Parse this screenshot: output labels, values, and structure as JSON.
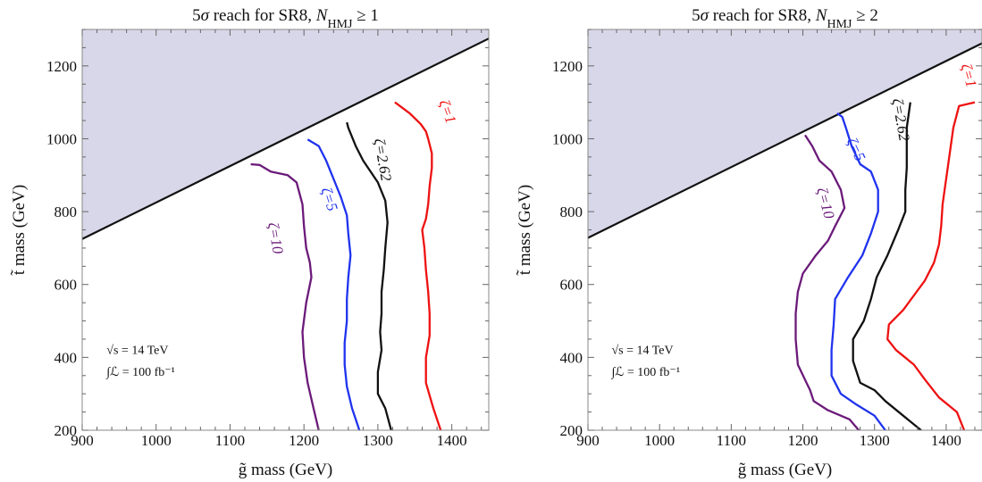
{
  "chart_data": [
    {
      "type": "line",
      "title": "5σ reach for SR8, N_HMJ ≥ 1",
      "title_parts": {
        "prefix": "5",
        "sigma": "σ",
        "mid": " reach for SR8, ",
        "N": "N",
        "sub": "HMJ",
        "rel": " ≥ 1"
      },
      "xlabel": "g̃ mass (GeV)",
      "ylabel": "t̃ mass (GeV)",
      "xlim": [
        900,
        1450
      ],
      "ylim": [
        200,
        1300
      ],
      "xticks": [
        "900",
        "1000",
        "1100",
        "1200",
        "1300",
        "1400"
      ],
      "yticks": [
        "200",
        "400",
        "600",
        "800",
        "1000",
        "1200"
      ],
      "grid": false,
      "excluded_region": {
        "color": "#d7d7e9",
        "boundary": [
          [
            900,
            725
          ],
          [
            1450,
            1275
          ]
        ]
      },
      "annotation": [
        "√s = 14 TeV",
        "∫ℒ = 100 fb⁻¹"
      ],
      "series": [
        {
          "name": "ζ=1",
          "color": "#ee1111",
          "label_at": [
            1388,
            1070
          ],
          "label_rot": 70,
          "x": [
            1385,
            1375,
            1365,
            1365,
            1370,
            1370,
            1368,
            1365,
            1363,
            1360,
            1365,
            1368,
            1370,
            1373,
            1373,
            1368,
            1365,
            1358,
            1343,
            1323
          ],
          "y": [
            200,
            260,
            330,
            400,
            460,
            520,
            580,
            640,
            700,
            750,
            780,
            820,
            870,
            920,
            960,
            1000,
            1020,
            1040,
            1070,
            1100
          ]
        },
        {
          "name": "ζ=2.62",
          "color": "#111111",
          "label_at": [
            1300,
            940
          ],
          "label_rot": 80,
          "x": [
            1318,
            1310,
            1300,
            1300,
            1305,
            1303,
            1305,
            1305,
            1308,
            1310,
            1313,
            1310,
            1300,
            1280,
            1270,
            1260,
            1258
          ],
          "y": [
            200,
            260,
            300,
            360,
            420,
            470,
            520,
            580,
            640,
            700,
            770,
            830,
            880,
            940,
            980,
            1030,
            1045
          ]
        },
        {
          "name": "ζ=5",
          "color": "#1f33ee",
          "label_at": [
            1228,
            830
          ],
          "label_rot": 72,
          "x": [
            1275,
            1265,
            1258,
            1255,
            1255,
            1258,
            1258,
            1260,
            1263,
            1260,
            1258,
            1250,
            1240,
            1230,
            1220,
            1205
          ],
          "y": [
            200,
            260,
            320,
            380,
            440,
            500,
            560,
            620,
            680,
            740,
            790,
            840,
            890,
            940,
            980,
            998
          ]
        },
        {
          "name": "ζ=10",
          "color": "#6b1a7a",
          "label_at": [
            1155,
            725
          ],
          "label_rot": 80,
          "x": [
            1220,
            1213,
            1205,
            1200,
            1198,
            1203,
            1210,
            1208,
            1203,
            1200,
            1198,
            1190,
            1178,
            1155,
            1140,
            1128
          ],
          "y": [
            200,
            260,
            330,
            400,
            470,
            550,
            620,
            660,
            700,
            760,
            820,
            880,
            900,
            910,
            928,
            930
          ]
        }
      ]
    },
    {
      "type": "line",
      "title": "5σ reach for SR8, N_HMJ ≥ 2",
      "title_parts": {
        "prefix": "5",
        "sigma": "σ",
        "mid": " reach for SR8, ",
        "N": "N",
        "sub": "HMJ",
        "rel": " ≥ 2"
      },
      "xlabel": "g̃ mass (GeV)",
      "ylabel": "t̃ mass (GeV)",
      "xlim": [
        900,
        1450
      ],
      "ylim": [
        200,
        1300
      ],
      "xticks": [
        "900",
        "1000",
        "1100",
        "1200",
        "1300",
        "1400"
      ],
      "yticks": [
        "200",
        "400",
        "600",
        "800",
        "1000",
        "1200"
      ],
      "grid": false,
      "excluded_region": {
        "color": "#d7d7e9",
        "boundary": [
          [
            900,
            728
          ],
          [
            1450,
            1262
          ]
        ]
      },
      "annotation": [
        "√s = 14 TeV",
        "∫ℒ = 100 fb⁻¹"
      ],
      "series": [
        {
          "name": "ζ=1",
          "color": "#ee1111",
          "label_at": [
            1425,
            1170
          ],
          "label_rot": 75,
          "x": [
            1425,
            1415,
            1390,
            1370,
            1355,
            1330,
            1318,
            1320,
            1340,
            1355,
            1370,
            1383,
            1390,
            1393,
            1395,
            1400,
            1405,
            1410,
            1418,
            1440
          ],
          "y": [
            200,
            250,
            290,
            340,
            380,
            420,
            450,
            490,
            530,
            570,
            610,
            660,
            710,
            760,
            820,
            890,
            960,
            1030,
            1090,
            1100
          ]
        },
        {
          "name": "ζ=2.62",
          "color": "#111111",
          "label_at": [
            1330,
            1050
          ],
          "label_rot": 80,
          "x": [
            1365,
            1340,
            1315,
            1300,
            1280,
            1270,
            1270,
            1285,
            1295,
            1303,
            1318,
            1333,
            1343,
            1343,
            1345,
            1345,
            1345,
            1350
          ],
          "y": [
            200,
            240,
            280,
            310,
            330,
            390,
            450,
            500,
            560,
            620,
            680,
            750,
            800,
            860,
            920,
            970,
            1030,
            1100
          ]
        },
        {
          "name": "ζ=5",
          "color": "#1f33ee",
          "label_at": [
            1268,
            965
          ],
          "label_rot": 65,
          "x": [
            1315,
            1300,
            1275,
            1253,
            1240,
            1240,
            1243,
            1245,
            1263,
            1283,
            1295,
            1305,
            1305,
            1295,
            1280,
            1268,
            1260,
            1255,
            1248
          ],
          "y": [
            200,
            240,
            270,
            300,
            350,
            420,
            490,
            560,
            620,
            680,
            740,
            800,
            860,
            910,
            930,
            980,
            1030,
            1060,
            1070
          ]
        },
        {
          "name": "ζ=10",
          "color": "#6b1a7a",
          "label_at": [
            1225,
            820
          ],
          "label_rot": 75,
          "x": [
            1278,
            1265,
            1235,
            1215,
            1210,
            1205,
            1193,
            1190,
            1190,
            1193,
            1200,
            1218,
            1235,
            1245,
            1258,
            1253,
            1240,
            1223,
            1213,
            1203
          ],
          "y": [
            200,
            230,
            255,
            280,
            310,
            330,
            380,
            450,
            520,
            580,
            630,
            680,
            720,
            760,
            810,
            860,
            910,
            940,
            980,
            1010
          ]
        }
      ]
    }
  ]
}
